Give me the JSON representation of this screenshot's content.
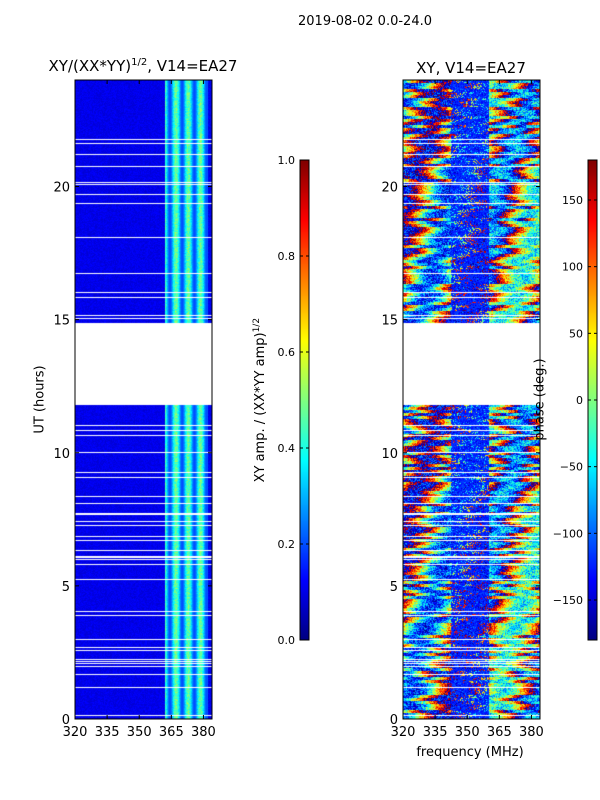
{
  "suptitle": "2019-08-02 0.0-24.0",
  "chart_data": [
    {
      "type": "heatmap",
      "title": "XY/(XX*YY)^1/2, V14=EA27",
      "title_main": "XY/(XX*YY)",
      "title_sup": "1/2",
      "title_tail": ", V14=EA27",
      "xlabel": "frequency (MHz)",
      "ylabel": "UT (hours)",
      "xlim": [
        320,
        384
      ],
      "ylim": [
        0,
        24
      ],
      "xticks": [
        320,
        335,
        350,
        365,
        380
      ],
      "yticks": [
        0,
        5,
        10,
        15,
        20
      ],
      "colorbar": {
        "label": "XY amp. / (XX*YY amp)",
        "label_sup": "1/2",
        "range": [
          0.0,
          1.0
        ],
        "ticks": [
          "0.0",
          "0.2",
          "0.4",
          "0.6",
          "0.8",
          "1.0"
        ],
        "tick_values": [
          0,
          0.2,
          0.4,
          0.6,
          0.8,
          1.0
        ],
        "colormap": "jet"
      },
      "background_level": 0.08,
      "high_band_mhz": [
        362,
        382
      ],
      "high_band_level": 0.45
    },
    {
      "type": "heatmap",
      "title": "XY, V14=EA27",
      "xlabel": "frequency (MHz)",
      "ylabel": "",
      "xlim": [
        320,
        384
      ],
      "ylim": [
        0,
        24
      ],
      "xticks": [
        320,
        335,
        350,
        365,
        380
      ],
      "yticks": [
        0,
        5,
        10,
        15,
        20
      ],
      "colorbar": {
        "label": "phase (deg.)",
        "range": [
          -180,
          180
        ],
        "ticks": [
          "−150",
          "−100",
          "−50",
          "0",
          "50",
          "100",
          "150"
        ],
        "tick_values": [
          -150,
          -100,
          -50,
          0,
          50,
          100,
          150
        ],
        "colormap": "jet"
      }
    }
  ],
  "data_gaps_hours": [
    [
      11.8,
      14.9
    ],
    [
      8.9,
      8.7
    ],
    [
      0.9,
      0.7
    ],
    [
      16.2,
      16.0
    ],
    [
      19.6,
      19.3
    ]
  ],
  "shared_xlabel": "frequency (MHz)"
}
